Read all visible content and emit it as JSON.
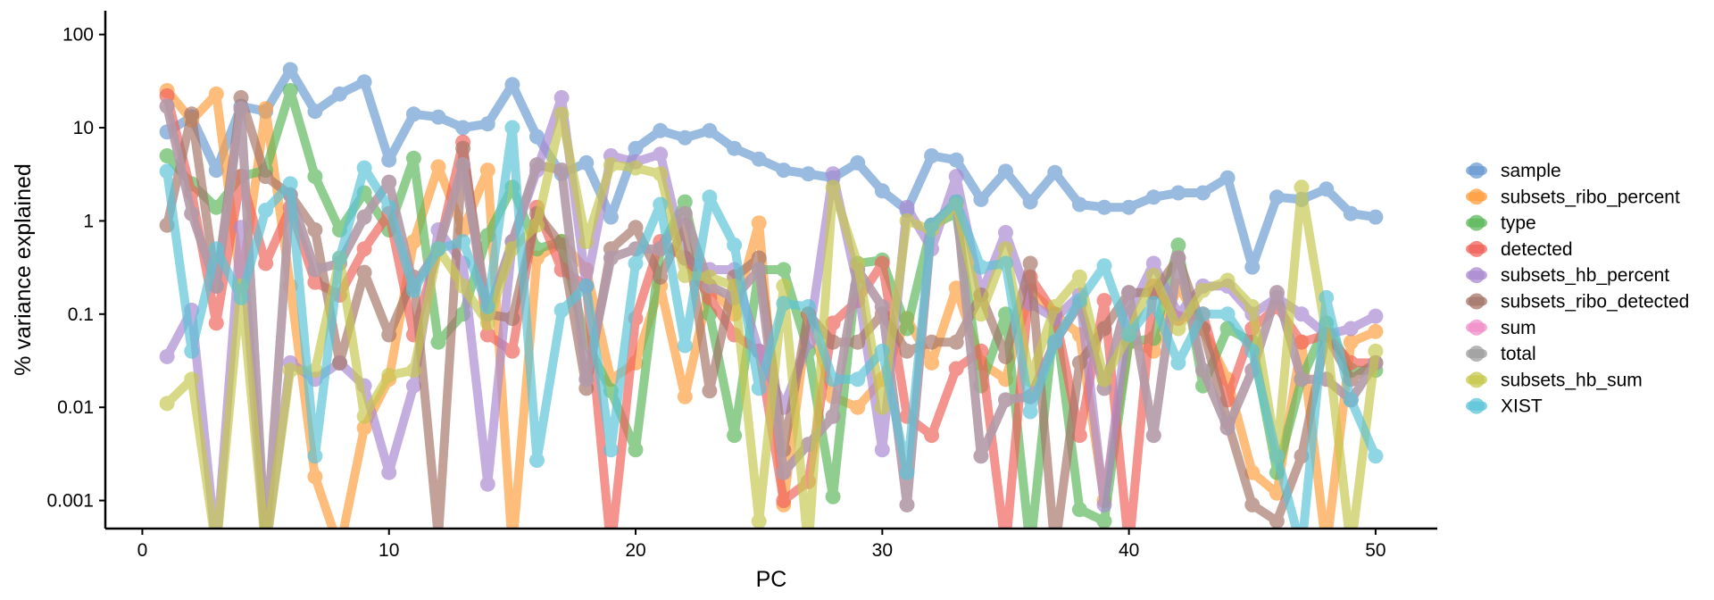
{
  "chart_data": {
    "type": "line",
    "xlabel": "PC",
    "ylabel": "% variance explained",
    "y_scale": "log",
    "xlim": [
      -1.5,
      52.5
    ],
    "ylim": [
      0.0005,
      180
    ],
    "x_ticks": [
      0,
      10,
      20,
      30,
      40,
      50
    ],
    "x_tick_labels": [
      "0",
      "10",
      "20",
      "30",
      "40",
      "50"
    ],
    "y_ticks": [
      0.001,
      0.01,
      0.1,
      1,
      10,
      100
    ],
    "y_tick_labels": [
      "0.001",
      "0.01",
      "0.1",
      "1",
      "10",
      "100"
    ],
    "grid": false,
    "legend_position": "right",
    "x": [
      1,
      2,
      3,
      4,
      5,
      6,
      7,
      8,
      9,
      10,
      11,
      12,
      13,
      14,
      15,
      16,
      17,
      18,
      19,
      20,
      21,
      22,
      23,
      24,
      25,
      26,
      27,
      28,
      29,
      30,
      31,
      32,
      33,
      34,
      35,
      36,
      37,
      38,
      39,
      40,
      41,
      42,
      43,
      44,
      45,
      46,
      47,
      48,
      49,
      50
    ],
    "series": [
      {
        "name": "sample",
        "color": "#6b9bd2",
        "values": [
          9,
          13,
          3.5,
          17,
          15,
          42,
          15,
          23,
          31,
          4.5,
          14,
          13,
          10,
          11,
          29,
          8,
          3.2,
          4.2,
          1.1,
          6,
          9.3,
          7.8,
          9.3,
          6,
          4.6,
          3.5,
          3.2,
          2.9,
          4.2,
          2.1,
          1.3,
          5,
          4.5,
          1.7,
          3.4,
          1.6,
          3.3,
          1.5,
          1.4,
          1.4,
          1.8,
          2,
          2,
          2.9,
          0.32,
          1.8,
          1.7,
          2.2,
          1.2,
          1.1
        ]
      },
      {
        "name": "subsets_ribo_percent",
        "color": "#ff9e3d",
        "values": [
          25,
          12,
          23,
          0.2,
          16,
          0.2,
          0.0018,
          0.0003,
          0.006,
          0.02,
          0.6,
          3.8,
          0.8,
          3.5,
          0.0003,
          0.4,
          0.6,
          0.3,
          0.02,
          0.03,
          0.2,
          0.013,
          0.2,
          0.1,
          0.95,
          0.0009,
          0.1,
          0.013,
          0.01,
          0.02,
          0.09,
          0.03,
          0.19,
          0.03,
          0.02,
          0.18,
          0.1,
          0.06,
          0.001,
          0.05,
          0.04,
          0.2,
          0.07,
          0.02,
          0.002,
          0.0012,
          0.05,
          0.0002,
          0.05,
          0.065
        ]
      },
      {
        "name": "type",
        "color": "#5cb85c",
        "values": [
          5,
          2.5,
          1.4,
          3,
          3.5,
          25,
          3,
          0.8,
          2,
          0.8,
          4.7,
          0.05,
          0.1,
          0.7,
          2.3,
          0.5,
          0.6,
          0.05,
          0.015,
          0.0035,
          0.5,
          1.6,
          0.1,
          0.005,
          0.3,
          0.3,
          0.04,
          0.0011,
          0.35,
          0.38,
          0.07,
          0.9,
          1.2,
          0.017,
          0.1,
          0.0002,
          0.1,
          0.0008,
          0.0006,
          0.05,
          0.055,
          0.55,
          0.017,
          0.07,
          0.05,
          0.002,
          0.02,
          0.08,
          0.025,
          0.025
        ]
      },
      {
        "name": "detected",
        "color": "#f0625a",
        "values": [
          22,
          2,
          0.08,
          3,
          0.35,
          1.4,
          0.22,
          0.16,
          0.5,
          1.2,
          0.06,
          0.5,
          7,
          0.06,
          0.04,
          1.4,
          0.3,
          0.2,
          0.0003,
          0.09,
          0.6,
          0.4,
          0.15,
          0.06,
          0.04,
          0.001,
          0.0016,
          0.08,
          0.14,
          0.35,
          0.008,
          0.005,
          0.026,
          0.04,
          0.0002,
          0.25,
          0.1,
          0.005,
          0.14,
          0.0002,
          0.2,
          0.09,
          0.1,
          0.012,
          0.07,
          0.12,
          0.05,
          0.06,
          0.03,
          0.03
        ]
      },
      {
        "name": "subsets_hb_percent",
        "color": "#a989d1",
        "values": [
          0.035,
          0.11,
          0.0002,
          0.85,
          0.0002,
          0.03,
          0.02,
          0.03,
          0.017,
          0.002,
          0.017,
          0.8,
          0.35,
          0.0015,
          0.6,
          3.5,
          21,
          0.2,
          5,
          4.3,
          5.2,
          0.4,
          0.3,
          0.3,
          0.04,
          0.01,
          0.05,
          3.2,
          0.2,
          0.0035,
          1.4,
          0.5,
          3,
          0.16,
          0.75,
          0.13,
          0.09,
          0.16,
          0.0009,
          0.1,
          0.35,
          0.1,
          0.2,
          0.2,
          0.1,
          0.15,
          0.1,
          0.06,
          0.07,
          0.095
        ]
      },
      {
        "name": "subsets_ribo_detected",
        "color": "#a67569",
        "values": [
          0.9,
          14,
          0.2,
          21,
          3,
          1.9,
          0.8,
          0.03,
          0.28,
          0.06,
          0.25,
          0.0004,
          6,
          0.1,
          0.09,
          1.2,
          0.55,
          0.016,
          0.5,
          0.85,
          0.25,
          0.9,
          0.015,
          0.25,
          0.4,
          0.0035,
          0.1,
          0.05,
          0.05,
          0.1,
          0.04,
          0.05,
          0.05,
          0.16,
          0.035,
          0.35,
          0.0002,
          0.03,
          0.07,
          0.17,
          0.17,
          0.4,
          0.07,
          0.007,
          0.0009,
          0.0006,
          0.003,
          0.06,
          0.02,
          0.03
        ]
      },
      {
        "name": "sum",
        "color": "#f08ec8",
        "values": [
          17,
          1.2,
          0.2,
          16,
          0.0002,
          1.9,
          0.3,
          0.35,
          1.1,
          2.6,
          0.2,
          0.5,
          4,
          0.1,
          0.6,
          4,
          3.5,
          0.02,
          0.4,
          0.5,
          0.5,
          1.2,
          0.2,
          0.15,
          0.3,
          0.002,
          0.004,
          0.008,
          0.3,
          0.12,
          0.0009,
          0.9,
          1.6,
          0.003,
          0.012,
          0.013,
          0.05,
          0.13,
          0.016,
          0.17,
          0.005,
          0.4,
          0.025,
          0.006,
          0.025,
          0.17,
          0.02,
          0.02,
          0.012,
          0.03
        ]
      },
      {
        "name": "total",
        "color": "#9e9e9e",
        "values": [
          17,
          1.2,
          0.2,
          16,
          0.0002,
          1.9,
          0.3,
          0.35,
          1.1,
          2.6,
          0.2,
          0.5,
          4,
          0.1,
          0.6,
          4,
          3.5,
          0.02,
          0.4,
          0.5,
          0.5,
          1.2,
          0.2,
          0.15,
          0.3,
          0.002,
          0.004,
          0.008,
          0.3,
          0.12,
          0.0009,
          0.9,
          1.6,
          0.003,
          0.012,
          0.013,
          0.05,
          0.13,
          0.016,
          0.17,
          0.005,
          0.4,
          0.025,
          0.006,
          0.025,
          0.17,
          0.02,
          0.02,
          0.012,
          0.03
        ]
      },
      {
        "name": "subsets_hb_sum",
        "color": "#c7c84e",
        "values": [
          0.011,
          0.02,
          0.0003,
          0.2,
          0.0002,
          0.025,
          0.025,
          0.4,
          0.008,
          0.022,
          0.025,
          0.5,
          0.2,
          0.08,
          0.5,
          0.9,
          14,
          0.6,
          4,
          3.7,
          3.2,
          0.26,
          0.25,
          0.2,
          0.0006,
          0.2,
          0.0002,
          2.3,
          0.35,
          0.01,
          1,
          0.8,
          1.5,
          0.1,
          0.5,
          0.02,
          0.12,
          0.25,
          0.02,
          0.06,
          0.26,
          0.07,
          0.18,
          0.23,
          0.12,
          0.003,
          2.3,
          0.06,
          0.0003,
          0.04
        ]
      },
      {
        "name": "XIST",
        "color": "#5bc4d8",
        "values": [
          3.4,
          0.04,
          0.5,
          0.15,
          1.3,
          2.5,
          0.003,
          0.4,
          3.7,
          1.4,
          0.18,
          0.5,
          0.6,
          0.12,
          10,
          0.0027,
          0.11,
          0.2,
          0.0035,
          0.35,
          1.5,
          0.046,
          1.8,
          0.55,
          0.016,
          0.13,
          0.12,
          0.02,
          0.02,
          0.04,
          0.002,
          0.9,
          1.6,
          0.32,
          0.35,
          0.009,
          0.05,
          0.14,
          0.33,
          0.06,
          0.13,
          0.03,
          0.1,
          0.1,
          0.04,
          0.003,
          0.0003,
          0.15,
          0.012,
          0.003
        ]
      }
    ]
  }
}
